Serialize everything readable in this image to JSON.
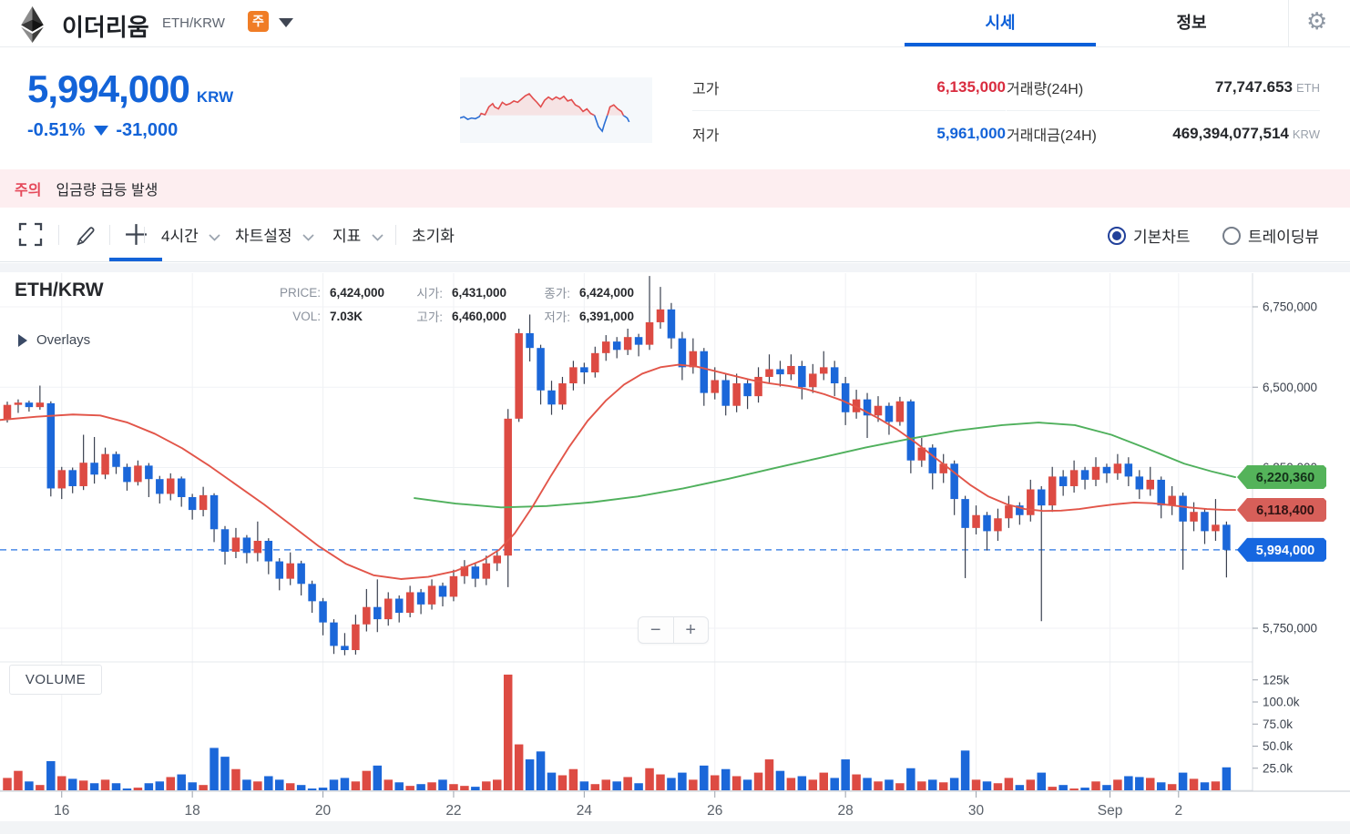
{
  "header": {
    "coin_name": "이더리움",
    "pair": "ETH/KRW",
    "badge": "주",
    "tabs": [
      {
        "label": "시세",
        "active": true
      },
      {
        "label": "정보",
        "active": false
      }
    ]
  },
  "price_summary": {
    "price": "5,994,000",
    "currency": "KRW",
    "change_pct": "-0.51%",
    "change_amt": "-31,000",
    "stats": [
      {
        "label": "고가",
        "value": "6,135,000"
      },
      {
        "label": "저가",
        "value": "5,961,000"
      },
      {
        "label": "거래량(24H)",
        "value": "77,747.653",
        "unit": "ETH"
      },
      {
        "label": "거래대금(24H)",
        "value": "469,394,077,514",
        "unit": "KRW"
      }
    ]
  },
  "warning": {
    "badge": "주의",
    "message": "입금량 급등 발생"
  },
  "toolbar": {
    "timeframe": "4시간",
    "chart_settings": "차트설정",
    "indicator": "지표",
    "reset": "초기화",
    "radios": [
      {
        "label": "기본차트",
        "selected": true
      },
      {
        "label": "트레이딩뷰",
        "selected": false
      }
    ]
  },
  "chart_info": {
    "symbol": "ETH/KRW",
    "price_label": "PRICE:",
    "price": "6,424,000",
    "open_label": "시가:",
    "open": "6,431,000",
    "close_label": "종가:",
    "close": "6,424,000",
    "vol_label": "VOL:",
    "vol": "7.03K",
    "high_label": "고가:",
    "high": "6,460,000",
    "low_label": "저가:",
    "low": "6,391,000",
    "overlays": "Overlays",
    "volume_panel": "VOLUME",
    "zoom_out": "−",
    "zoom_in": "+"
  },
  "colors": {
    "up": "#dd4b43",
    "down": "#1b67d9",
    "wick": "#3a4150",
    "ma_red": "#e25549",
    "ma_green": "#4fb05c",
    "dashed_line": "#4b8ae8",
    "accent_blue": "#1363d8"
  },
  "chart_data": {
    "type": "candlestick",
    "price_unit": "KRW thousands",
    "volume_unit": "k",
    "y_axis_range_k": [
      5640,
      6880
    ],
    "y_gridlines": [
      {
        "price": 6750,
        "label": "6,750,000"
      },
      {
        "price": 6500,
        "label": "6,500,000"
      },
      {
        "price": 6250,
        "label": "6,250,000"
      },
      {
        "price": 5750,
        "label": "5,750,000"
      }
    ],
    "volume_gridlines": [
      {
        "value": 125,
        "label": "125k"
      },
      {
        "value": 100,
        "label": "100.0k"
      },
      {
        "value": 75,
        "label": "75.0k"
      },
      {
        "value": 50,
        "label": "50.0k"
      },
      {
        "value": 25,
        "label": "25.0k"
      }
    ],
    "x_ticks": [
      {
        "i": 5,
        "label": "16"
      },
      {
        "i": 17,
        "label": "18"
      },
      {
        "i": 29,
        "label": "20"
      },
      {
        "i": 41,
        "label": "22"
      },
      {
        "i": 53,
        "label": "24"
      },
      {
        "i": 65,
        "label": "26"
      },
      {
        "i": 77,
        "label": "28"
      },
      {
        "i": 89,
        "label": "30"
      },
      {
        "i": 101.3,
        "label": "Sep"
      },
      {
        "i": 107.6,
        "label": "2"
      }
    ],
    "last_price_line": 5994,
    "tags": [
      {
        "price": 6220.36,
        "label": "6,220,360",
        "bg": "#54b35a",
        "fg": "#14321a"
      },
      {
        "price": 6118.4,
        "label": "6,118,400",
        "bg": "#d75f59",
        "fg": "#321414"
      },
      {
        "price": 5994,
        "label": "5,994,000",
        "bg": "#1667e0",
        "fg": "#ffffff"
      }
    ],
    "candles": [
      [
        6400,
        6445,
        6390,
        6455
      ],
      [
        6445,
        6452,
        6420,
        6462
      ],
      [
        6452,
        6438,
        6424,
        6458
      ],
      [
        6438,
        6452,
        6430,
        6505
      ],
      [
        6450,
        6185,
        6160,
        6456
      ],
      [
        6185,
        6242,
        6152,
        6252
      ],
      [
        6242,
        6192,
        6170,
        6250
      ],
      [
        6192,
        6265,
        6180,
        6352
      ],
      [
        6265,
        6228,
        6200,
        6345
      ],
      [
        6228,
        6292,
        6214,
        6312
      ],
      [
        6292,
        6252,
        6230,
        6300
      ],
      [
        6252,
        6205,
        6178,
        6262
      ],
      [
        6205,
        6256,
        6194,
        6272
      ],
      [
        6256,
        6214,
        6158,
        6264
      ],
      [
        6214,
        6168,
        6138,
        6224
      ],
      [
        6168,
        6216,
        6148,
        6232
      ],
      [
        6216,
        6158,
        6128,
        6222
      ],
      [
        6158,
        6118,
        6088,
        6168
      ],
      [
        6118,
        6164,
        6098,
        6190
      ],
      [
        6164,
        6058,
        6018,
        6170
      ],
      [
        6058,
        5988,
        5948,
        6068
      ],
      [
        5988,
        6032,
        5968,
        6062
      ],
      [
        6032,
        5984,
        5952,
        6040
      ],
      [
        5984,
        6022,
        5958,
        6082
      ],
      [
        6022,
        5958,
        5918,
        6030
      ],
      [
        5958,
        5904,
        5868,
        5968
      ],
      [
        5904,
        5952,
        5884,
        5986
      ],
      [
        5952,
        5888,
        5852,
        5960
      ],
      [
        5888,
        5834,
        5798,
        5898
      ],
      [
        5834,
        5768,
        5728,
        5844
      ],
      [
        5768,
        5695,
        5670,
        5778
      ],
      [
        5695,
        5682,
        5666,
        5735
      ],
      [
        5682,
        5762,
        5668,
        5792
      ],
      [
        5762,
        5816,
        5740,
        5872
      ],
      [
        5816,
        5778,
        5738,
        5902
      ],
      [
        5778,
        5842,
        5758,
        5862
      ],
      [
        5842,
        5798,
        5768,
        5852
      ],
      [
        5798,
        5862,
        5784,
        5882
      ],
      [
        5862,
        5824,
        5794,
        5872
      ],
      [
        5824,
        5882,
        5808,
        5902
      ],
      [
        5882,
        5848,
        5818,
        5892
      ],
      [
        5848,
        5912,
        5834,
        5932
      ],
      [
        5912,
        5942,
        5888,
        5962
      ],
      [
        5942,
        5904,
        5878,
        5952
      ],
      [
        5904,
        5952,
        5884,
        5976
      ],
      [
        5952,
        5976,
        5928,
        5992
      ],
      [
        5976,
        6402,
        5878,
        6432
      ],
      [
        6402,
        6668,
        6392,
        6682
      ],
      [
        6668,
        6622,
        6580,
        6726
      ],
      [
        6622,
        6490,
        6446,
        6632
      ],
      [
        6490,
        6446,
        6414,
        6520
      ],
      [
        6446,
        6512,
        6430,
        6532
      ],
      [
        6512,
        6562,
        6490,
        6582
      ],
      [
        6562,
        6546,
        6510,
        6576
      ],
      [
        6546,
        6606,
        6530,
        6626
      ],
      [
        6606,
        6642,
        6582,
        6662
      ],
      [
        6642,
        6616,
        6590,
        6656
      ],
      [
        6616,
        6656,
        6600,
        6682
      ],
      [
        6656,
        6632,
        6596,
        6666
      ],
      [
        6632,
        6702,
        6616,
        6846
      ],
      [
        6702,
        6742,
        6682,
        6812
      ],
      [
        6742,
        6652,
        6620,
        6762
      ],
      [
        6652,
        6562,
        6522,
        6672
      ],
      [
        6562,
        6612,
        6542,
        6652
      ],
      [
        6612,
        6482,
        6442,
        6622
      ],
      [
        6482,
        6522,
        6462,
        6562
      ],
      [
        6522,
        6442,
        6412,
        6542
      ],
      [
        6442,
        6512,
        6422,
        6542
      ],
      [
        6512,
        6472,
        6432,
        6522
      ],
      [
        6472,
        6532,
        6452,
        6562
      ],
      [
        6532,
        6556,
        6512,
        6602
      ],
      [
        6556,
        6540,
        6502,
        6582
      ],
      [
        6540,
        6566,
        6522,
        6602
      ],
      [
        6566,
        6500,
        6462,
        6582
      ],
      [
        6500,
        6542,
        6482,
        6572
      ],
      [
        6542,
        6562,
        6522,
        6612
      ],
      [
        6562,
        6512,
        6472,
        6582
      ],
      [
        6512,
        6422,
        6382,
        6532
      ],
      [
        6422,
        6462,
        6402,
        6492
      ],
      [
        6462,
        6412,
        6342,
        6482
      ],
      [
        6412,
        6442,
        6392,
        6472
      ],
      [
        6442,
        6392,
        6352,
        6452
      ],
      [
        6392,
        6456,
        6380,
        6470
      ],
      [
        6456,
        6272,
        6232,
        6462
      ],
      [
        6272,
        6312,
        6252,
        6342
      ],
      [
        6312,
        6232,
        6182,
        6322
      ],
      [
        6232,
        6262,
        6202,
        6292
      ],
      [
        6262,
        6152,
        6102,
        6272
      ],
      [
        6152,
        6062,
        5906,
        6162
      ],
      [
        6062,
        6102,
        6042,
        6132
      ],
      [
        6102,
        6052,
        5992,
        6112
      ],
      [
        6052,
        6092,
        6022,
        6122
      ],
      [
        6092,
        6132,
        6062,
        6162
      ],
      [
        6132,
        6102,
        6072,
        6142
      ],
      [
        6102,
        6182,
        6082,
        6212
      ],
      [
        6182,
        6132,
        5772,
        6192
      ],
      [
        6132,
        6222,
        6112,
        6252
      ],
      [
        6222,
        6192,
        6162,
        6242
      ],
      [
        6192,
        6242,
        6172,
        6272
      ],
      [
        6242,
        6212,
        6182,
        6252
      ],
      [
        6212,
        6252,
        6192,
        6282
      ],
      [
        6252,
        6232,
        6202,
        6262
      ],
      [
        6232,
        6262,
        6212,
        6292
      ],
      [
        6262,
        6222,
        6192,
        6282
      ],
      [
        6222,
        6182,
        6152,
        6242
      ],
      [
        6182,
        6212,
        6162,
        6252
      ],
      [
        6212,
        6132,
        6092,
        6222
      ],
      [
        6132,
        6162,
        6102,
        6192
      ],
      [
        6162,
        6082,
        5932,
        6172
      ],
      [
        6082,
        6112,
        6052,
        6142
      ],
      [
        6112,
        6052,
        6012,
        6122
      ],
      [
        6052,
        6072,
        6022,
        6152
      ],
      [
        6072,
        5994,
        5908,
        6082
      ]
    ],
    "volumes_k": [
      14,
      22,
      10,
      6,
      33,
      16,
      13,
      11,
      8,
      12,
      8,
      2,
      3,
      8,
      10,
      15,
      18,
      9,
      6,
      48,
      38,
      24,
      12,
      10,
      16,
      12,
      8,
      6,
      2,
      3,
      12,
      14,
      10,
      22,
      28,
      12,
      9,
      5,
      7,
      9,
      12,
      7,
      5,
      4,
      10,
      12,
      131,
      52,
      35,
      44,
      20,
      17,
      24,
      10,
      7,
      12,
      10,
      15,
      8,
      25,
      18,
      14,
      20,
      12,
      28,
      17,
      24,
      16,
      12,
      20,
      35,
      22,
      14,
      16,
      12,
      20,
      14,
      35,
      18,
      14,
      10,
      12,
      8,
      25,
      10,
      12,
      9,
      14,
      45,
      12,
      10,
      8,
      14,
      6,
      12,
      20,
      4,
      6,
      2,
      3,
      10,
      6,
      12,
      16,
      15,
      14,
      9,
      7,
      20,
      13,
      9,
      10,
      26
    ],
    "ma_short_red": [
      [
        0,
        6398
      ],
      [
        40,
        6408
      ],
      [
        80,
        6415
      ],
      [
        110,
        6412
      ],
      [
        140,
        6390
      ],
      [
        170,
        6355
      ],
      [
        200,
        6310
      ],
      [
        230,
        6255
      ],
      [
        260,
        6195
      ],
      [
        290,
        6135
      ],
      [
        320,
        6070
      ],
      [
        350,
        6005
      ],
      [
        380,
        5950
      ],
      [
        410,
        5915
      ],
      [
        440,
        5903
      ],
      [
        470,
        5910
      ],
      [
        500,
        5928
      ],
      [
        530,
        5962
      ],
      [
        548,
        5994
      ],
      [
        565,
        6045
      ],
      [
        585,
        6130
      ],
      [
        605,
        6225
      ],
      [
        625,
        6315
      ],
      [
        645,
        6395
      ],
      [
        665,
        6458
      ],
      [
        685,
        6508
      ],
      [
        705,
        6542
      ],
      [
        725,
        6562
      ],
      [
        745,
        6570
      ],
      [
        765,
        6564
      ],
      [
        785,
        6550
      ],
      [
        805,
        6536
      ],
      [
        825,
        6522
      ],
      [
        845,
        6512
      ],
      [
        865,
        6504
      ],
      [
        885,
        6494
      ],
      [
        905,
        6478
      ],
      [
        925,
        6458
      ],
      [
        945,
        6432
      ],
      [
        965,
        6402
      ],
      [
        985,
        6368
      ],
      [
        1005,
        6328
      ],
      [
        1025,
        6284
      ],
      [
        1045,
        6240
      ],
      [
        1065,
        6196
      ],
      [
        1085,
        6160
      ],
      [
        1105,
        6136
      ],
      [
        1125,
        6121
      ],
      [
        1145,
        6115
      ],
      [
        1165,
        6116
      ],
      [
        1185,
        6121
      ],
      [
        1205,
        6129
      ],
      [
        1225,
        6136
      ],
      [
        1245,
        6141
      ],
      [
        1265,
        6139
      ],
      [
        1285,
        6133
      ],
      [
        1305,
        6126
      ],
      [
        1325,
        6121
      ],
      [
        1345,
        6118
      ],
      [
        1356,
        6118
      ]
    ],
    "ma_long_green": [
      [
        455,
        6155
      ],
      [
        500,
        6138
      ],
      [
        550,
        6126
      ],
      [
        600,
        6130
      ],
      [
        650,
        6142
      ],
      [
        700,
        6160
      ],
      [
        750,
        6185
      ],
      [
        800,
        6215
      ],
      [
        850,
        6248
      ],
      [
        900,
        6280
      ],
      [
        950,
        6312
      ],
      [
        1000,
        6340
      ],
      [
        1050,
        6365
      ],
      [
        1100,
        6382
      ],
      [
        1140,
        6390
      ],
      [
        1180,
        6382
      ],
      [
        1220,
        6352
      ],
      [
        1260,
        6308
      ],
      [
        1300,
        6262
      ],
      [
        1330,
        6238
      ],
      [
        1356,
        6220
      ]
    ],
    "sparkline": {
      "baseline": 0.58,
      "points": [
        [
          0.0,
          0.62
        ],
        [
          0.02,
          0.6
        ],
        [
          0.04,
          0.64
        ],
        [
          0.06,
          0.62
        ],
        [
          0.08,
          0.63
        ],
        [
          0.1,
          0.6
        ],
        [
          0.11,
          0.55
        ],
        [
          0.13,
          0.57
        ],
        [
          0.15,
          0.45
        ],
        [
          0.17,
          0.4
        ],
        [
          0.18,
          0.45
        ],
        [
          0.2,
          0.48
        ],
        [
          0.22,
          0.38
        ],
        [
          0.24,
          0.42
        ],
        [
          0.26,
          0.4
        ],
        [
          0.28,
          0.36
        ],
        [
          0.3,
          0.38
        ],
        [
          0.32,
          0.33
        ],
        [
          0.34,
          0.28
        ],
        [
          0.36,
          0.25
        ],
        [
          0.38,
          0.32
        ],
        [
          0.4,
          0.38
        ],
        [
          0.42,
          0.45
        ],
        [
          0.44,
          0.35
        ],
        [
          0.46,
          0.3
        ],
        [
          0.48,
          0.34
        ],
        [
          0.5,
          0.3
        ],
        [
          0.52,
          0.33
        ],
        [
          0.54,
          0.29
        ],
        [
          0.56,
          0.36
        ],
        [
          0.58,
          0.34
        ],
        [
          0.6,
          0.42
        ],
        [
          0.62,
          0.45
        ],
        [
          0.64,
          0.52
        ],
        [
          0.66,
          0.48
        ],
        [
          0.68,
          0.55
        ],
        [
          0.7,
          0.58
        ],
        [
          0.72,
          0.75
        ],
        [
          0.74,
          0.82
        ],
        [
          0.75,
          0.72
        ],
        [
          0.77,
          0.55
        ],
        [
          0.78,
          0.45
        ],
        [
          0.8,
          0.42
        ],
        [
          0.82,
          0.48
        ],
        [
          0.84,
          0.52
        ],
        [
          0.85,
          0.58
        ],
        [
          0.87,
          0.62
        ],
        [
          0.88,
          0.68
        ]
      ]
    }
  }
}
